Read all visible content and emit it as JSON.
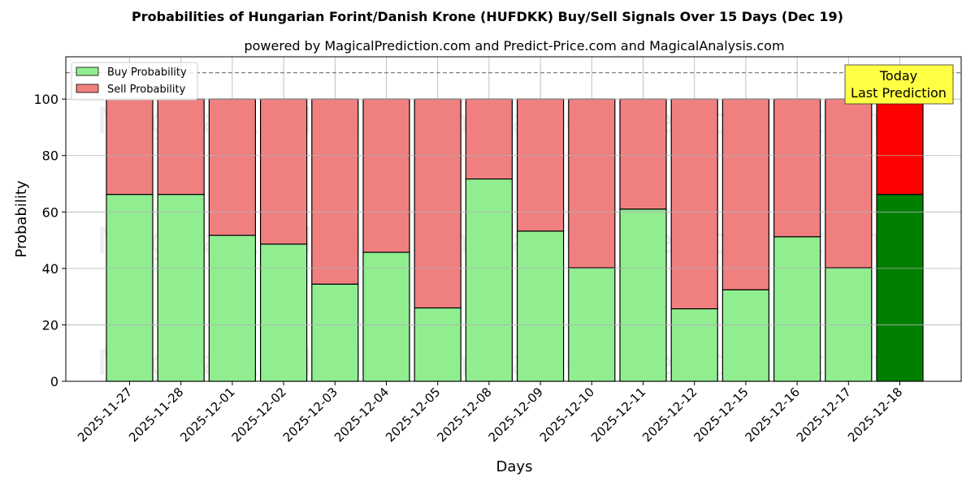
{
  "title": "Probabilities of Hungarian Forint/Danish Krone (HUFDKK) Buy/Sell Signals Over 15 Days (Dec 19)",
  "subtitle": "powered by MagicalPrediction.com and Predict-Price.com and MagicalAnalysis.com",
  "xlabel": "Days",
  "ylabel": "Probability",
  "legend": {
    "buy_label": "Buy Probability",
    "sell_label": "Sell Probability"
  },
  "annotation": {
    "line1": "Today",
    "line2": "Last Prediction"
  },
  "watermarks": [
    "MagicalAnalysis.com",
    "MagicalPrediction.com"
  ],
  "colors": {
    "buy": "#90ee90",
    "sell": "#f08080",
    "buy_today": "#008000",
    "sell_today": "#ff0000",
    "annotation_bg": "#ffff44",
    "grid": "#b0b0b0",
    "dashed_line": "#808080"
  },
  "chart_data": {
    "type": "bar",
    "stacked": true,
    "title": "Probabilities of Hungarian Forint/Danish Krone (HUFDKK) Buy/Sell Signals Over 15 Days (Dec 19)",
    "subtitle": "powered by MagicalPrediction.com and Predict-Price.com and MagicalAnalysis.com",
    "xlabel": "Days",
    "ylabel": "Probability",
    "ylim": [
      0,
      115
    ],
    "yticks": [
      0,
      20,
      40,
      60,
      80,
      100
    ],
    "grid": true,
    "legend_position": "upper left",
    "reference_line": 110,
    "categories": [
      "2025-11-27",
      "2025-11-28",
      "2025-12-01",
      "2025-12-02",
      "2025-12-03",
      "2025-12-04",
      "2025-12-05",
      "2025-12-08",
      "2025-12-09",
      "2025-12-10",
      "2025-12-11",
      "2025-12-12",
      "2025-12-15",
      "2025-12-16",
      "2025-12-17",
      "2025-12-18"
    ],
    "series": [
      {
        "name": "Buy Probability",
        "values": [
          66.2,
          66.2,
          51.7,
          48.6,
          34.4,
          45.7,
          26.0,
          71.7,
          53.2,
          40.2,
          61.0,
          25.7,
          32.4,
          51.2,
          40.2,
          66.2
        ]
      },
      {
        "name": "Sell Probability",
        "values": [
          33.8,
          33.8,
          48.3,
          51.4,
          65.6,
          54.3,
          74.0,
          28.3,
          46.8,
          59.8,
          39.0,
          74.3,
          67.6,
          48.8,
          59.8,
          33.8
        ]
      }
    ],
    "highlight_last": true
  }
}
